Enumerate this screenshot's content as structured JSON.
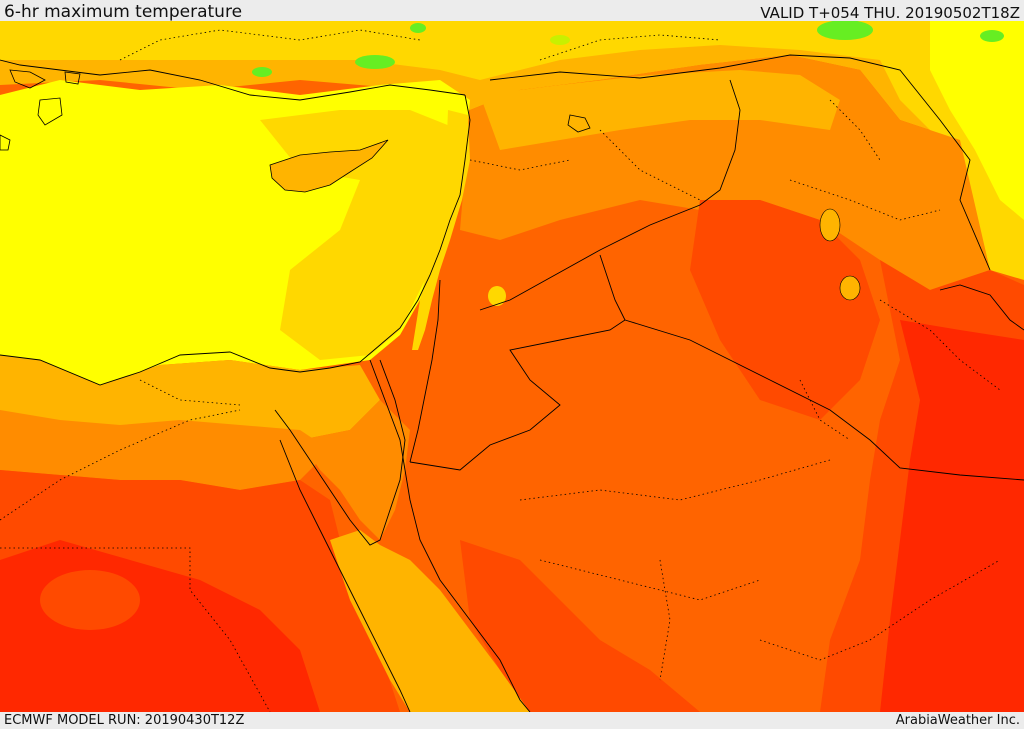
{
  "header": {
    "title": "6-hr maximum temperature",
    "valid": "VALID T+054 THU. 20190502T18Z"
  },
  "footer": {
    "model_run": "ECMWF MODEL RUN: 20190430T12Z",
    "credit": "ArabiaWeather Inc."
  },
  "map": {
    "variable": "6-hr maximum temperature",
    "region": "Eastern Mediterranean and Middle East",
    "palette": {
      "green": "#66ee22",
      "yellow_green": "#c8f000",
      "yellow": "#ffff00",
      "gold": "#ffd800",
      "light_orange": "#ffb400",
      "orange": "#ff8c00",
      "dark_orange": "#ff6400",
      "red_orange": "#ff4a00",
      "red": "#ff2800"
    }
  }
}
